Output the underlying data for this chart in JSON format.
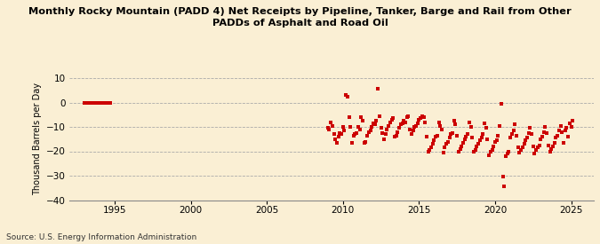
{
  "title": "Monthly Rocky Mountain (PADD 4) Net Receipts by Pipeline, Tanker, Barge and Rail from Other\nPADDs of Asphalt and Road Oil",
  "ylabel": "Thousand Barrels per Day",
  "source": "Source: U.S. Energy Information Administration",
  "background_color": "#faefd4",
  "marker_color": "#cc0000",
  "ylim": [
    -40,
    10
  ],
  "yticks": [
    -40,
    -30,
    -20,
    -10,
    0,
    10
  ],
  "xlim_start": 1992.0,
  "xlim_end": 2026.5,
  "xticks": [
    1995,
    2000,
    2005,
    2010,
    2015,
    2020,
    2025
  ],
  "data": [
    [
      1993.0,
      0.0
    ],
    [
      1993.1,
      0.0
    ],
    [
      1993.2,
      0.0
    ],
    [
      1993.3,
      0.0
    ],
    [
      1993.4,
      0.0
    ],
    [
      1993.5,
      0.0
    ],
    [
      1993.6,
      0.0
    ],
    [
      1993.7,
      0.0
    ],
    [
      1993.8,
      0.0
    ],
    [
      1993.9,
      0.0
    ],
    [
      1994.0,
      0.0
    ],
    [
      1994.1,
      0.0
    ],
    [
      1994.2,
      0.0
    ],
    [
      1994.3,
      0.0
    ],
    [
      1994.4,
      0.0
    ],
    [
      1994.5,
      0.0
    ],
    [
      1994.6,
      0.0
    ],
    [
      1994.7,
      0.0
    ],
    [
      2009.0,
      -10.5
    ],
    [
      2009.1,
      -11.0
    ],
    [
      2009.2,
      -8.0
    ],
    [
      2009.3,
      -9.5
    ],
    [
      2009.4,
      -13.0
    ],
    [
      2009.5,
      -15.0
    ],
    [
      2009.6,
      -16.5
    ],
    [
      2009.7,
      -14.0
    ],
    [
      2009.8,
      -12.5
    ],
    [
      2009.9,
      -13.0
    ],
    [
      2010.0,
      -10.0
    ],
    [
      2010.1,
      -11.5
    ],
    [
      2010.2,
      3.0
    ],
    [
      2010.3,
      2.5
    ],
    [
      2010.4,
      -6.0
    ],
    [
      2010.5,
      -10.0
    ],
    [
      2010.6,
      -16.5
    ],
    [
      2010.7,
      -13.5
    ],
    [
      2010.8,
      -13.0
    ],
    [
      2010.9,
      -12.5
    ],
    [
      2011.0,
      -10.0
    ],
    [
      2011.1,
      -11.0
    ],
    [
      2011.2,
      -6.0
    ],
    [
      2011.3,
      -7.5
    ],
    [
      2011.4,
      -16.5
    ],
    [
      2011.5,
      -16.0
    ],
    [
      2011.6,
      -13.5
    ],
    [
      2011.7,
      -12.0
    ],
    [
      2011.8,
      -11.5
    ],
    [
      2011.9,
      -10.0
    ],
    [
      2012.0,
      -8.5
    ],
    [
      2012.1,
      -9.0
    ],
    [
      2012.2,
      -7.5
    ],
    [
      2012.3,
      5.5
    ],
    [
      2012.4,
      -5.5
    ],
    [
      2012.5,
      -10.5
    ],
    [
      2012.6,
      -12.5
    ],
    [
      2012.7,
      -15.0
    ],
    [
      2012.8,
      -13.0
    ],
    [
      2012.9,
      -11.0
    ],
    [
      2013.0,
      -9.5
    ],
    [
      2013.1,
      -8.0
    ],
    [
      2013.2,
      -7.0
    ],
    [
      2013.3,
      -6.5
    ],
    [
      2013.4,
      -14.0
    ],
    [
      2013.5,
      -13.5
    ],
    [
      2013.6,
      -12.0
    ],
    [
      2013.7,
      -10.5
    ],
    [
      2013.8,
      -9.0
    ],
    [
      2013.9,
      -8.5
    ],
    [
      2014.0,
      -7.5
    ],
    [
      2014.1,
      -8.0
    ],
    [
      2014.2,
      -6.0
    ],
    [
      2014.3,
      -5.5
    ],
    [
      2014.4,
      -11.0
    ],
    [
      2014.5,
      -13.0
    ],
    [
      2014.6,
      -11.5
    ],
    [
      2014.7,
      -10.0
    ],
    [
      2014.8,
      -9.5
    ],
    [
      2014.9,
      -8.5
    ],
    [
      2015.0,
      -7.0
    ],
    [
      2015.1,
      -6.5
    ],
    [
      2015.2,
      -5.5
    ],
    [
      2015.3,
      -6.0
    ],
    [
      2015.4,
      -8.0
    ],
    [
      2015.5,
      -14.0
    ],
    [
      2015.6,
      -20.0
    ],
    [
      2015.7,
      -19.5
    ],
    [
      2015.8,
      -18.5
    ],
    [
      2015.9,
      -17.0
    ],
    [
      2016.0,
      -15.5
    ],
    [
      2016.1,
      -14.0
    ],
    [
      2016.2,
      -13.5
    ],
    [
      2016.3,
      -8.0
    ],
    [
      2016.4,
      -9.5
    ],
    [
      2016.5,
      -11.0
    ],
    [
      2016.6,
      -20.5
    ],
    [
      2016.7,
      -18.5
    ],
    [
      2016.8,
      -17.0
    ],
    [
      2016.9,
      -16.0
    ],
    [
      2017.0,
      -14.5
    ],
    [
      2017.1,
      -13.0
    ],
    [
      2017.2,
      -12.5
    ],
    [
      2017.3,
      -7.5
    ],
    [
      2017.4,
      -9.0
    ],
    [
      2017.5,
      -13.5
    ],
    [
      2017.6,
      -20.0
    ],
    [
      2017.7,
      -19.0
    ],
    [
      2017.8,
      -18.0
    ],
    [
      2017.9,
      -16.5
    ],
    [
      2018.0,
      -15.0
    ],
    [
      2018.1,
      -14.0
    ],
    [
      2018.2,
      -13.0
    ],
    [
      2018.3,
      -8.0
    ],
    [
      2018.4,
      -10.0
    ],
    [
      2018.5,
      -14.5
    ],
    [
      2018.6,
      -20.0
    ],
    [
      2018.7,
      -19.5
    ],
    [
      2018.8,
      -18.0
    ],
    [
      2018.9,
      -17.0
    ],
    [
      2019.0,
      -15.5
    ],
    [
      2019.1,
      -14.5
    ],
    [
      2019.2,
      -13.0
    ],
    [
      2019.3,
      -8.5
    ],
    [
      2019.4,
      -10.5
    ],
    [
      2019.5,
      -15.0
    ],
    [
      2019.6,
      -21.5
    ],
    [
      2019.7,
      -20.0
    ],
    [
      2019.8,
      -19.5
    ],
    [
      2019.9,
      -18.0
    ],
    [
      2020.0,
      -16.0
    ],
    [
      2020.1,
      -15.5
    ],
    [
      2020.2,
      -13.5
    ],
    [
      2020.3,
      -9.5
    ],
    [
      2020.4,
      -0.5
    ],
    [
      2020.5,
      -30.5
    ],
    [
      2020.6,
      -34.5
    ],
    [
      2020.7,
      -22.0
    ],
    [
      2020.8,
      -21.0
    ],
    [
      2020.9,
      -20.0
    ],
    [
      2021.0,
      -14.5
    ],
    [
      2021.1,
      -13.0
    ],
    [
      2021.2,
      -11.5
    ],
    [
      2021.3,
      -9.0
    ],
    [
      2021.4,
      -13.5
    ],
    [
      2021.5,
      -18.5
    ],
    [
      2021.6,
      -20.5
    ],
    [
      2021.7,
      -19.5
    ],
    [
      2021.8,
      -18.5
    ],
    [
      2021.9,
      -17.0
    ],
    [
      2022.0,
      -15.5
    ],
    [
      2022.1,
      -14.5
    ],
    [
      2022.2,
      -12.5
    ],
    [
      2022.3,
      -10.5
    ],
    [
      2022.4,
      -13.0
    ],
    [
      2022.5,
      -18.0
    ],
    [
      2022.6,
      -21.0
    ],
    [
      2022.7,
      -19.5
    ],
    [
      2022.8,
      -18.5
    ],
    [
      2022.9,
      -17.5
    ],
    [
      2023.0,
      -15.0
    ],
    [
      2023.1,
      -14.0
    ],
    [
      2023.2,
      -12.0
    ],
    [
      2023.3,
      -10.0
    ],
    [
      2023.4,
      -12.5
    ],
    [
      2023.5,
      -17.5
    ],
    [
      2023.6,
      -20.0
    ],
    [
      2023.7,
      -19.0
    ],
    [
      2023.8,
      -18.0
    ],
    [
      2023.9,
      -16.5
    ],
    [
      2024.0,
      -14.5
    ],
    [
      2024.1,
      -13.5
    ],
    [
      2024.2,
      -11.5
    ],
    [
      2024.3,
      -9.5
    ],
    [
      2024.4,
      -12.0
    ],
    [
      2024.5,
      -16.5
    ],
    [
      2024.6,
      -11.5
    ],
    [
      2024.7,
      -10.5
    ],
    [
      2024.8,
      -14.0
    ],
    [
      2024.9,
      -8.5
    ],
    [
      2025.0,
      -10.0
    ],
    [
      2025.1,
      -7.5
    ]
  ]
}
